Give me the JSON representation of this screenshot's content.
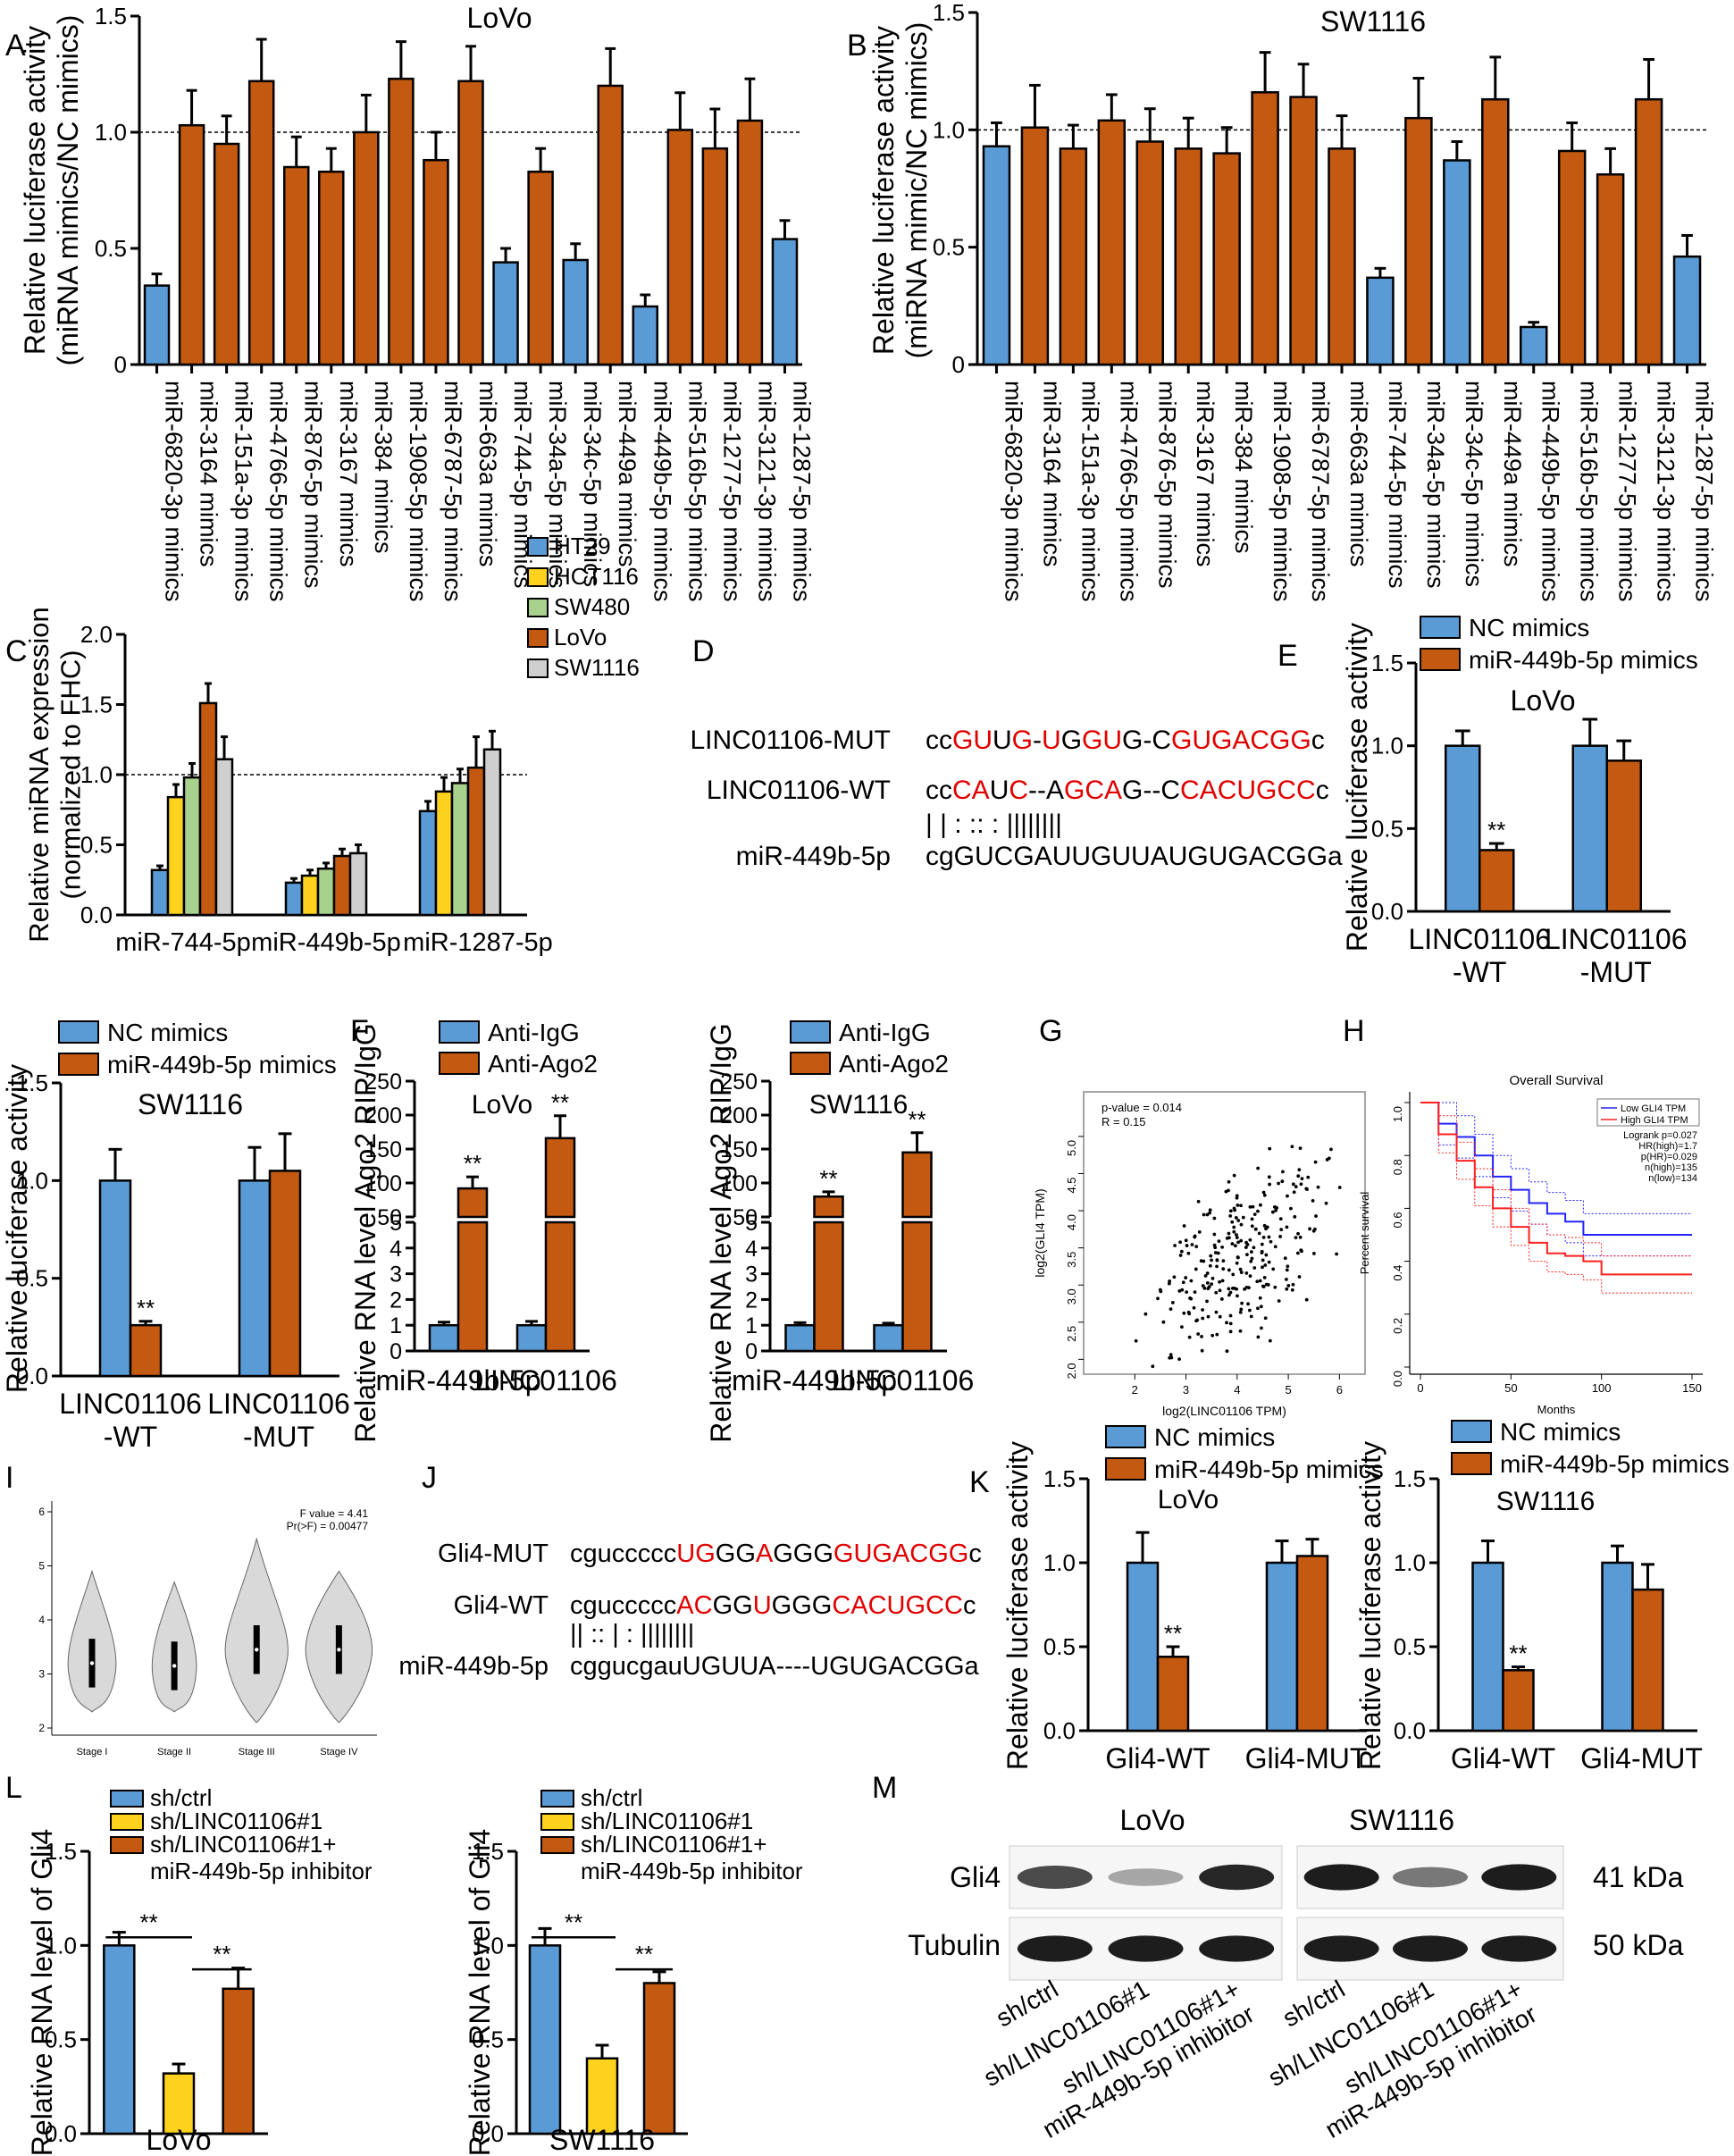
{
  "colors": {
    "blue": "#5b9bd5",
    "orange": "#c45a11",
    "yellow": "#ffd21e",
    "green": "#a9d18e",
    "gray": "#cfcfcf",
    "red": "#e00000"
  },
  "panel_labels": [
    "A",
    "B",
    "C",
    "D",
    "E",
    "F",
    "G",
    "H",
    "I",
    "J",
    "K",
    "L",
    "M"
  ],
  "chart_data": [
    {
      "id": "A",
      "type": "bar",
      "title": "LoVo",
      "ylabel": "Relative luciferase activity\n(miRNA mimics/NC mimics)",
      "ylim": [
        0,
        1.5
      ],
      "yticks": [
        "0",
        "0.5",
        "1.0",
        "1.5"
      ],
      "refline": 1.0,
      "categories": [
        "miR-6820-3p mimics",
        "miR-3164 mimics",
        "miR-151a-3p mimics",
        "miR-4766-5p mimics",
        "miR-876-5p mimics",
        "miR-3167 mimics",
        "miR-384 mimics",
        "miR-1908-5p mimics",
        "miR-6787-5p mimics",
        "miR-663a mimics",
        "miR-744-5p mimics",
        "miR-34a-5p mimics",
        "miR-34c-5p mimics",
        "miR-449a mimics",
        "miR-449b-5p mimics",
        "miR-516b-5p mimics",
        "miR-1277-5p mimics",
        "miR-3121-3p mimics",
        "miR-1287-5p mimics"
      ],
      "values": [
        0.34,
        1.03,
        0.95,
        1.22,
        0.85,
        0.83,
        1.0,
        1.23,
        0.88,
        1.22,
        0.44,
        0.83,
        0.45,
        1.2,
        0.25,
        1.01,
        0.93,
        1.05,
        0.54
      ],
      "errors": [
        0.05,
        0.15,
        0.12,
        0.18,
        0.13,
        0.1,
        0.16,
        0.16,
        0.12,
        0.15,
        0.06,
        0.1,
        0.07,
        0.16,
        0.05,
        0.16,
        0.17,
        0.18,
        0.08
      ],
      "bar_colors": [
        "blue",
        "orange",
        "orange",
        "orange",
        "orange",
        "orange",
        "orange",
        "orange",
        "orange",
        "orange",
        "blue",
        "orange",
        "blue",
        "orange",
        "blue",
        "orange",
        "orange",
        "orange",
        "blue"
      ]
    },
    {
      "id": "B",
      "type": "bar",
      "title": "SW1116",
      "ylabel": "Relative luciferase activity\n(miRNA mimic/NC mimics)",
      "ylim": [
        0,
        1.5
      ],
      "yticks": [
        "0",
        "0.5",
        "1.0",
        "1.5"
      ],
      "refline": 1.0,
      "categories": [
        "miR-6820-3p mimics",
        "miR-3164 mimics",
        "miR-151a-3p mimics",
        "miR-4766-5p mimics",
        "miR-876-5p mimics",
        "miR-3167 mimics",
        "miR-384 mimics",
        "miR-1908-5p mimics",
        "miR-6787-5p mimics",
        "miR-663a mimics",
        "miR-744-5p mimics",
        "miR-34a-5p mimics",
        "miR-34c-5p mimics",
        "miR-449a mimics",
        "miR-449b-5p mimics",
        "miR-516b-5p mimics",
        "miR-1277-5p mimics",
        "miR-3121-3p mimics",
        "miR-1287-5p mimics"
      ],
      "values": [
        0.93,
        1.01,
        0.92,
        1.04,
        0.95,
        0.92,
        0.9,
        1.16,
        1.14,
        0.92,
        0.37,
        1.05,
        0.87,
        1.13,
        0.16,
        0.91,
        0.81,
        1.13,
        0.46
      ],
      "errors": [
        0.1,
        0.18,
        0.1,
        0.11,
        0.14,
        0.13,
        0.11,
        0.17,
        0.14,
        0.14,
        0.04,
        0.17,
        0.08,
        0.18,
        0.02,
        0.12,
        0.11,
        0.17,
        0.09
      ],
      "bar_colors": [
        "blue",
        "orange",
        "orange",
        "orange",
        "orange",
        "orange",
        "orange",
        "orange",
        "orange",
        "orange",
        "blue",
        "orange",
        "blue",
        "orange",
        "blue",
        "orange",
        "orange",
        "orange",
        "blue"
      ]
    },
    {
      "id": "C",
      "type": "bar",
      "ylabel": "Relative miRNA expression\n(normalized to FHC)",
      "ylim": [
        0,
        2.0
      ],
      "yticks": [
        "0.0",
        "0.5",
        "1.0",
        "1.5",
        "2.0"
      ],
      "refline": 1.0,
      "categories": [
        "miR-744-5p",
        "miR-449b-5p",
        "miR-1287-5p"
      ],
      "series": [
        {
          "name": "HT29",
          "color": "blue",
          "values": [
            0.32,
            0.23,
            0.74
          ],
          "errors": [
            0.03,
            0.03,
            0.07
          ]
        },
        {
          "name": "HCT116",
          "color": "yellow",
          "values": [
            0.84,
            0.28,
            0.88
          ],
          "errors": [
            0.09,
            0.04,
            0.1
          ]
        },
        {
          "name": "SW480",
          "color": "green",
          "values": [
            0.98,
            0.33,
            0.94
          ],
          "errors": [
            0.1,
            0.04,
            0.1
          ]
        },
        {
          "name": "LoVo",
          "color": "orange",
          "values": [
            1.51,
            0.42,
            1.05
          ],
          "errors": [
            0.14,
            0.05,
            0.22
          ]
        },
        {
          "name": "SW1116",
          "color": "gray",
          "values": [
            1.11,
            0.44,
            1.18
          ],
          "errors": [
            0.16,
            0.06,
            0.13
          ]
        }
      ]
    },
    {
      "id": "E",
      "type": "bar",
      "title": "LoVo",
      "ylabel": "Relative luciferase activity",
      "ylim": [
        0,
        1.5
      ],
      "yticks": [
        "0.0",
        "0.5",
        "1.0",
        "1.5"
      ],
      "categories": [
        "LINC01106\n-WT",
        "LINC01106\n-MUT"
      ],
      "series": [
        {
          "name": "NC mimics",
          "color": "blue",
          "values": [
            1.0,
            1.0
          ],
          "errors": [
            0.09,
            0.16
          ]
        },
        {
          "name": "miR-449b-5p mimics",
          "color": "orange",
          "values": [
            0.37,
            0.91
          ],
          "errors": [
            0.04,
            0.12
          ]
        }
      ],
      "annotations": [
        "**"
      ]
    },
    {
      "id": "E2",
      "type": "bar",
      "title": "SW1116",
      "ylabel": "Relative luciferase activity",
      "ylim": [
        0,
        1.5
      ],
      "yticks": [
        "0.0",
        "0.5",
        "1.0",
        "1.5"
      ],
      "categories": [
        "LINC01106\n-WT",
        "LINC01106\n-MUT"
      ],
      "series": [
        {
          "name": "NC mimics",
          "color": "blue",
          "values": [
            1.0,
            1.0
          ],
          "errors": [
            0.16,
            0.17
          ]
        },
        {
          "name": "miR-449b-5p mimics",
          "color": "orange",
          "values": [
            0.26,
            1.05
          ],
          "errors": [
            0.02,
            0.19
          ]
        }
      ],
      "annotations": [
        "**"
      ]
    },
    {
      "id": "F1",
      "type": "bar",
      "title": "LoVo",
      "ylabel": "Relative RNA level Ago2 RIP/IgG",
      "broken_axis": true,
      "lower_ylim": [
        0,
        5
      ],
      "upper_ylim": [
        50,
        250
      ],
      "yticks": [
        "0",
        "1",
        "2",
        "3",
        "4",
        "5",
        "50",
        "100",
        "150",
        "200",
        "250"
      ],
      "categories": [
        "miR-449b-5p",
        "LINC01106"
      ],
      "series": [
        {
          "name": "Anti-IgG",
          "color": "blue",
          "values": [
            1.0,
            1.0
          ],
          "errors": [
            0.12,
            0.15
          ]
        },
        {
          "name": "Anti-Ago2",
          "color": "orange",
          "values": [
            92,
            166
          ],
          "errors": [
            17,
            33
          ]
        }
      ],
      "annotations": [
        "**",
        "**"
      ]
    },
    {
      "id": "F2",
      "type": "bar",
      "title": "SW1116",
      "ylabel": "Relative RNA level Ago2 RIP/IgG",
      "broken_axis": true,
      "lower_ylim": [
        0,
        5
      ],
      "upper_ylim": [
        50,
        250
      ],
      "yticks": [
        "0",
        "1",
        "2",
        "3",
        "4",
        "5",
        "50",
        "100",
        "150",
        "200",
        "250"
      ],
      "categories": [
        "miR-449b-5p",
        "LINC01106"
      ],
      "series": [
        {
          "name": "Anti-IgG",
          "color": "blue",
          "values": [
            1.0,
            1.0
          ],
          "errors": [
            0.1,
            0.08
          ]
        },
        {
          "name": "Anti-Ago2",
          "color": "orange",
          "values": [
            80,
            145
          ],
          "errors": [
            7,
            29
          ]
        }
      ],
      "annotations": [
        "**",
        "**"
      ]
    },
    {
      "id": "G",
      "type": "scatter",
      "xlabel": "log2(LINC01106 TPM)",
      "ylabel": "log2(GLI4 TPM)",
      "xlim": [
        1,
        6.5
      ],
      "ylim": [
        1.8,
        5.6
      ],
      "xticks": [
        "2",
        "3",
        "4",
        "5",
        "6"
      ],
      "yticks": [
        "2.0",
        "2.5",
        "3.0",
        "3.5",
        "4.0",
        "4.5",
        "5.0"
      ],
      "annotation": [
        "p-value = 0.014",
        "R = 0.15"
      ]
    },
    {
      "id": "H",
      "type": "line",
      "title": "Overall Survival",
      "xlabel": "Months",
      "ylabel": "Percent survival",
      "xticks": [
        "0",
        "50",
        "100",
        "150"
      ],
      "yticks": [
        "0.0",
        "0.2",
        "0.4",
        "0.6",
        "0.8",
        "1.0"
      ],
      "legend": [
        "Low GLI4 TPM",
        "High GLI4 TPM"
      ],
      "stats": [
        "Logrank p=0.027",
        "HR(high)=1.7",
        "p(HR)=0.029",
        "n(high)=135",
        "n(low)=134"
      ],
      "series": [
        {
          "name": "Low GLI4 TPM",
          "color": "#2323ff",
          "x": [
            0,
            10,
            20,
            30,
            40,
            50,
            60,
            70,
            80,
            90,
            100,
            150
          ],
          "y": [
            1.0,
            0.92,
            0.87,
            0.8,
            0.72,
            0.67,
            0.62,
            0.58,
            0.55,
            0.5,
            0.5,
            0.5
          ]
        },
        {
          "name": "High GLI4 TPM",
          "color": "#ff2020",
          "x": [
            0,
            10,
            20,
            30,
            40,
            50,
            60,
            70,
            80,
            90,
            100,
            150
          ],
          "y": [
            1.0,
            0.88,
            0.78,
            0.68,
            0.6,
            0.53,
            0.47,
            0.43,
            0.42,
            0.4,
            0.35,
            0.35
          ]
        }
      ]
    },
    {
      "id": "I",
      "type": "violin",
      "categories": [
        "Stage I",
        "Stage II",
        "Stage III",
        "Stage IV"
      ],
      "yticks": [
        "2",
        "3",
        "4",
        "5",
        "6"
      ],
      "annotation": [
        "F value = 4.41",
        "Pr(>F) = 0.00477"
      ],
      "medians": [
        3.2,
        3.15,
        3.45,
        3.45
      ]
    },
    {
      "id": "K1",
      "type": "bar",
      "title": "LoVo",
      "ylabel": "Relative luciferase activity",
      "ylim": [
        0,
        1.5
      ],
      "yticks": [
        "0.0",
        "0.5",
        "1.0",
        "1.5"
      ],
      "categories": [
        "Gli4-WT",
        "Gli4-MUT"
      ],
      "series": [
        {
          "name": "NC mimics",
          "color": "blue",
          "values": [
            1.0,
            1.0
          ],
          "errors": [
            0.18,
            0.13
          ]
        },
        {
          "name": "miR-449b-5p mimics",
          "color": "orange",
          "values": [
            0.44,
            1.04
          ],
          "errors": [
            0.06,
            0.1
          ]
        }
      ],
      "annotations": [
        "**"
      ]
    },
    {
      "id": "K2",
      "type": "bar",
      "title": "SW1116",
      "ylabel": "Relative luciferase activity",
      "ylim": [
        0,
        1.5
      ],
      "yticks": [
        "0.0",
        "0.5",
        "1.0",
        "1.5"
      ],
      "categories": [
        "Gli4-WT",
        "Gli4-MUT"
      ],
      "series": [
        {
          "name": "NC mimics",
          "color": "blue",
          "values": [
            1.0,
            1.0
          ],
          "errors": [
            0.13,
            0.1
          ]
        },
        {
          "name": "miR-449b-5p mimics",
          "color": "orange",
          "values": [
            0.36,
            0.84
          ],
          "errors": [
            0.02,
            0.15
          ]
        }
      ],
      "annotations": [
        "**"
      ]
    },
    {
      "id": "L1",
      "type": "bar",
      "xlabel": "LoVo",
      "ylabel": "Relative RNA level of Gli4",
      "ylim": [
        0,
        1.5
      ],
      "yticks": [
        "0.0",
        "0.5",
        "1.0",
        "1.5"
      ],
      "categories": [
        "sh/ctrl",
        "sh/LINC01106#1",
        "sh/LINC01106#1+\nmiR-449b-5p inhibitor"
      ],
      "values": [
        1.0,
        0.32,
        0.77
      ],
      "errors": [
        0.07,
        0.05,
        0.11
      ],
      "bar_colors": [
        "blue",
        "yellow",
        "orange"
      ],
      "annotations": [
        "**",
        "**"
      ]
    },
    {
      "id": "L2",
      "type": "bar",
      "xlabel": "SW1116",
      "ylabel": "Relative RNA level of Gli4",
      "ylim": [
        0,
        1.5
      ],
      "yticks": [
        "0.0",
        "0.5",
        "1.0",
        "1.5"
      ],
      "categories": [
        "sh/ctrl",
        "sh/LINC01106#1",
        "sh/LINC01106#1+\nmiR-449b-5p inhibitor"
      ],
      "values": [
        1.0,
        0.4,
        0.8
      ],
      "errors": [
        0.09,
        0.07,
        0.06
      ],
      "bar_colors": [
        "blue",
        "yellow",
        "orange"
      ],
      "annotations": [
        "**",
        "**"
      ]
    }
  ],
  "sequences": {
    "D": {
      "rows": [
        {
          "label": "LINC01106-MUT",
          "segments": [
            [
              "cc",
              0
            ],
            [
              "GU",
              1
            ],
            [
              "U",
              0
            ],
            [
              "G",
              1
            ],
            [
              "-",
              0
            ],
            [
              "U",
              1
            ],
            [
              "G",
              0
            ],
            [
              "GU",
              1
            ],
            [
              "G-C",
              0
            ],
            [
              "GUGACGG",
              1
            ],
            [
              "c",
              0
            ]
          ]
        },
        {
          "label": "LINC01106-WT",
          "segments": [
            [
              "cc",
              0
            ],
            [
              "CA",
              1
            ],
            [
              "U",
              0
            ],
            [
              "C",
              1
            ],
            [
              "--A",
              0
            ],
            [
              "GCA",
              1
            ],
            [
              "G--C",
              0
            ],
            [
              "CACUGCC",
              1
            ],
            [
              "c",
              0
            ]
          ]
        },
        {
          "label": "",
          "segments": [
            [
              "|      |      :  ::   :      ||||||||",
              0
            ]
          ]
        },
        {
          "label": "miR-449b-5p",
          "segments": [
            [
              "cgGUCGAUUGUUAUGUGACGGa",
              0
            ]
          ]
        }
      ]
    },
    "J": {
      "rows": [
        {
          "label": "Gli4-MUT",
          "segments": [
            [
              "cguccccc",
              0
            ],
            [
              "UG",
              1
            ],
            [
              "GG",
              0
            ],
            [
              "A",
              1
            ],
            [
              "GGG",
              0
            ],
            [
              "GUGACGG",
              1
            ],
            [
              "c",
              0
            ]
          ]
        },
        {
          "label": "Gli4-WT",
          "segments": [
            [
              "cguccccc",
              0
            ],
            [
              "AC",
              1
            ],
            [
              "GG",
              0
            ],
            [
              "U",
              1
            ],
            [
              "GGG",
              0
            ],
            [
              "CACUGCC",
              1
            ],
            [
              "c",
              0
            ]
          ]
        },
        {
          "label": "",
          "segments": [
            [
              "||  ::  |       :  ||||||||",
              0
            ]
          ]
        },
        {
          "label": "miR-449b-5p",
          "segments": [
            [
              "cggucgauUGUUA----UGUGACGGa",
              0
            ]
          ]
        }
      ]
    }
  },
  "western": {
    "cells": [
      "LoVo",
      "SW1116"
    ],
    "rows": [
      {
        "label": "Gli4",
        "kda": "41 kDa",
        "intensity": [
          0.75,
          0.35,
          0.9,
          0.95,
          0.55,
          0.95
        ]
      },
      {
        "label": "Tubulin",
        "kda": "50 kDa",
        "intensity": [
          0.95,
          0.95,
          0.95,
          0.95,
          0.95,
          0.95
        ]
      }
    ],
    "lanes": [
      "sh/ctrl",
      "sh/LINC01106#1",
      "sh/LINC01106#1+\nmiR-449b-5p inhibitor"
    ]
  }
}
